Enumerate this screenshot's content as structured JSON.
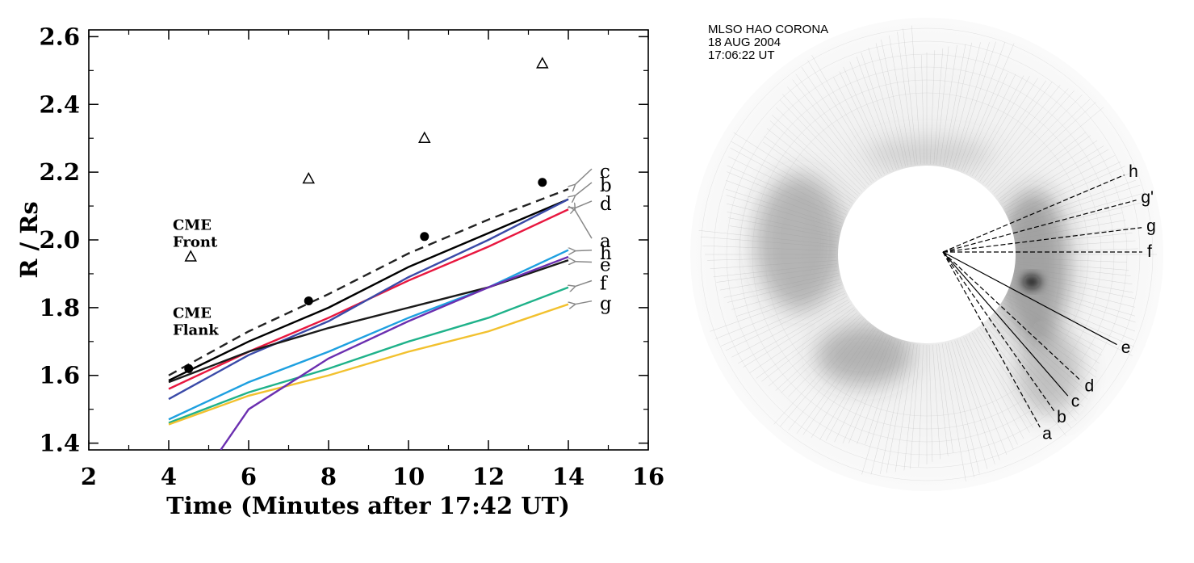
{
  "chart_data": [
    {
      "type": "line",
      "xlabel": "Time (Minutes after 17:42 UT)",
      "ylabel": "R / Rs",
      "xlim": [
        2,
        16
      ],
      "ylim": [
        1.38,
        2.62
      ],
      "x_ticks": [
        2,
        4,
        6,
        8,
        10,
        12,
        14,
        16
      ],
      "y_ticks": [
        1.4,
        1.6,
        1.8,
        2.0,
        2.2,
        2.4,
        2.6
      ],
      "x_tick_labels": [
        "2",
        "4",
        "6",
        "8",
        "10",
        "12",
        "14",
        "16"
      ],
      "y_tick_labels": [
        "1.4",
        "1.6",
        "1.8",
        "2.0",
        "2.2",
        "2.4",
        "2.6"
      ],
      "grid": false,
      "annotations": [
        {
          "text": "CME\nFront",
          "x": 4.1,
          "y": 2.03
        },
        {
          "text": "CME\nFlank",
          "x": 4.1,
          "y": 1.77
        }
      ],
      "markers": [
        {
          "label": "CME Front",
          "symbol": "triangle-open",
          "points": [
            [
              4.55,
              1.95
            ],
            [
              7.5,
              2.18
            ],
            [
              10.4,
              2.3
            ],
            [
              13.35,
              2.52
            ]
          ]
        },
        {
          "label": "CME Flank",
          "symbol": "circle-filled",
          "points": [
            [
              4.5,
              1.62
            ],
            [
              7.5,
              1.82
            ],
            [
              10.4,
              2.01
            ],
            [
              13.35,
              2.17
            ]
          ]
        }
      ],
      "series": [
        {
          "name": "c",
          "color": "#222222",
          "style": "dashed",
          "x": [
            4,
            6,
            8,
            10,
            12,
            14
          ],
          "y": [
            1.6,
            1.73,
            1.84,
            1.96,
            2.06,
            2.15
          ],
          "label_y": 2.2
        },
        {
          "name": "b",
          "color": "#000000",
          "style": "solid",
          "x": [
            4,
            6,
            8,
            10,
            12,
            14
          ],
          "y": [
            1.585,
            1.7,
            1.8,
            1.92,
            2.02,
            2.12
          ],
          "label_y": 2.16
        },
        {
          "name": "d",
          "color": "#e8173f",
          "style": "solid",
          "x": [
            4,
            6,
            8,
            10,
            12,
            14
          ],
          "y": [
            1.56,
            1.67,
            1.77,
            1.88,
            1.98,
            2.09
          ],
          "label_y": 2.105
        },
        {
          "name": "a",
          "color": "#3a4aa8",
          "style": "solid",
          "x": [
            4,
            6,
            8,
            10,
            12,
            14
          ],
          "y": [
            1.53,
            1.66,
            1.76,
            1.89,
            2.0,
            2.12
          ],
          "label_y": 1.995
        },
        {
          "name": "h",
          "color": "#1ea0e0",
          "style": "solid",
          "x": [
            4,
            6,
            8,
            10,
            12,
            14
          ],
          "y": [
            1.47,
            1.58,
            1.67,
            1.77,
            1.86,
            1.97
          ],
          "label_y": 1.96
        },
        {
          "name": "e",
          "color": "#1a1a1a",
          "style": "solid",
          "x": [
            4,
            6,
            8,
            10,
            12,
            14
          ],
          "y": [
            1.58,
            1.67,
            1.74,
            1.8,
            1.86,
            1.94
          ],
          "label_y": 1.925
        },
        {
          "name": "f",
          "color": "#1fb28a",
          "style": "solid",
          "x": [
            4,
            6,
            8,
            10,
            12,
            14
          ],
          "y": [
            1.46,
            1.55,
            1.62,
            1.7,
            1.77,
            1.86
          ],
          "label_y": 1.87
        },
        {
          "name": "g",
          "color": "#f2c12e",
          "style": "solid",
          "x": [
            4,
            6,
            8,
            10,
            12,
            14
          ],
          "y": [
            1.455,
            1.54,
            1.6,
            1.67,
            1.73,
            1.81
          ],
          "label_y": 1.81
        },
        {
          "name": "",
          "color": "#6b2fb0",
          "style": "solid",
          "x": [
            5.3,
            6,
            8,
            10,
            12,
            14
          ],
          "y": [
            1.38,
            1.5,
            1.65,
            1.76,
            1.86,
            1.95
          ],
          "label_y": null
        }
      ]
    },
    {
      "type": "other",
      "header": [
        "MLSO HAO CORONA",
        "18 AUG 2004",
        "17:06:22 UT"
      ],
      "rays": [
        {
          "label": "h",
          "angle_deg": 23,
          "style": "dashed"
        },
        {
          "label": "g'",
          "angle_deg": 15,
          "style": "dashed"
        },
        {
          "label": "g",
          "angle_deg": 7,
          "style": "dashed"
        },
        {
          "label": "f",
          "angle_deg": 0,
          "style": "dashed"
        },
        {
          "label": "e",
          "angle_deg": -28,
          "style": "solid"
        },
        {
          "label": "d",
          "angle_deg": -43,
          "style": "dashed"
        },
        {
          "label": "c",
          "angle_deg": -49,
          "style": "solid"
        },
        {
          "label": "b",
          "angle_deg": -55,
          "style": "dashed"
        },
        {
          "label": "a",
          "angle_deg": -61,
          "style": "dashed"
        }
      ]
    }
  ]
}
